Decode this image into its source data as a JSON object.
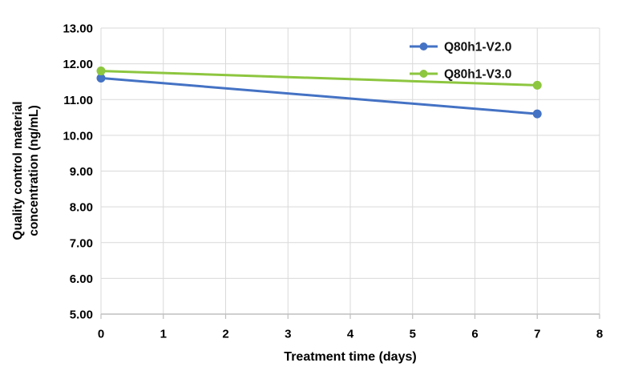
{
  "chart_data": {
    "type": "line",
    "title": "",
    "xlabel": "Treatment time (days)",
    "ylabel_lines": [
      "Quality control material",
      "concentration (ng/mL)"
    ],
    "x": [
      0,
      7
    ],
    "series": [
      {
        "name": "Q80h1-V2.0",
        "color": "#4472C4",
        "values": [
          11.6,
          10.6
        ]
      },
      {
        "name": "Q80h1-V3.0",
        "color": "#8DC63F",
        "values": [
          11.8,
          11.4
        ]
      }
    ],
    "xlim": [
      0,
      8
    ],
    "ylim": [
      5,
      13
    ],
    "x_ticks": [
      0,
      1,
      2,
      3,
      4,
      5,
      6,
      7,
      8
    ],
    "x_tick_labels": [
      "0",
      "1",
      "2",
      "3",
      "4",
      "5",
      "6",
      "7",
      "8"
    ],
    "y_ticks": [
      5,
      6,
      7,
      8,
      9,
      10,
      11,
      12,
      13
    ],
    "y_tick_labels": [
      "5.00",
      "6.00",
      "7.00",
      "8.00",
      "9.00",
      "10.00",
      "11.00",
      "12.00",
      "13.00"
    ],
    "grid": true,
    "legend_position": "top-right",
    "colors": {
      "gridline": "#D9D9D9",
      "axis": "#BFBFBF",
      "text": "#000000",
      "background": "#FFFFFF"
    }
  }
}
